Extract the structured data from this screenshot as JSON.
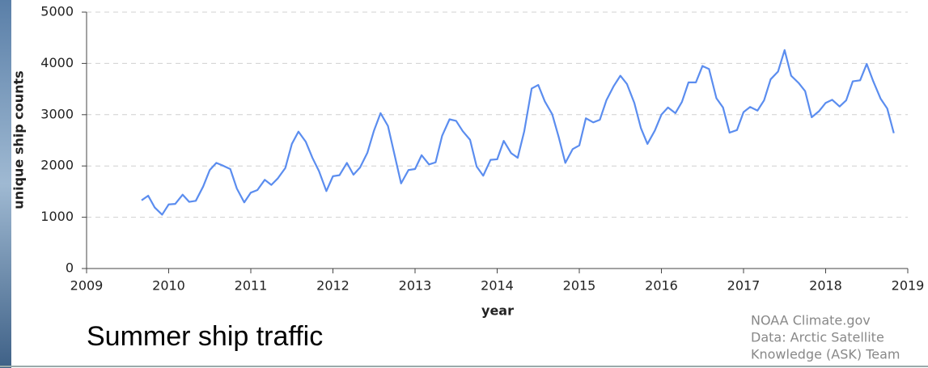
{
  "chart_data": {
    "type": "line",
    "y_label": "unique ship counts",
    "x_label": "year",
    "caption": "Summer ship traffic",
    "credits": [
      "NOAA Climate.gov",
      "Data: Arctic Satellite",
      "Knowledge (ASK) Team"
    ],
    "xlim": [
      2009,
      2019
    ],
    "xticks": [
      2009,
      2010,
      2011,
      2012,
      2013,
      2014,
      2015,
      2016,
      2017,
      2018,
      2019
    ],
    "ylim": [
      0,
      5000
    ],
    "yticks": [
      0,
      1000,
      2000,
      3000,
      4000,
      5000
    ],
    "grid": true,
    "x": [
      2009.67,
      2009.75,
      2009.83,
      2009.92,
      2010,
      2010.08,
      2010.17,
      2010.25,
      2010.33,
      2010.42,
      2010.5,
      2010.58,
      2010.67,
      2010.75,
      2010.83,
      2010.92,
      2011,
      2011.08,
      2011.17,
      2011.25,
      2011.33,
      2011.42,
      2011.5,
      2011.58,
      2011.67,
      2011.75,
      2011.83,
      2011.92,
      2012,
      2012.08,
      2012.17,
      2012.25,
      2012.33,
      2012.42,
      2012.5,
      2012.58,
      2012.67,
      2012.75,
      2012.83,
      2012.92,
      2013,
      2013.08,
      2013.17,
      2013.25,
      2013.33,
      2013.42,
      2013.5,
      2013.58,
      2013.67,
      2013.75,
      2013.83,
      2013.92,
      2014,
      2014.08,
      2014.17,
      2014.25,
      2014.33,
      2014.42,
      2014.5,
      2014.58,
      2014.67,
      2014.75,
      2014.83,
      2014.92,
      2015,
      2015.08,
      2015.17,
      2015.25,
      2015.33,
      2015.42,
      2015.5,
      2015.58,
      2015.67,
      2015.75,
      2015.83,
      2015.92,
      2016,
      2016.08,
      2016.17,
      2016.25,
      2016.33,
      2016.42,
      2016.5,
      2016.58,
      2016.67,
      2016.75,
      2016.83,
      2016.92,
      2017,
      2017.08,
      2017.17,
      2017.25,
      2017.33,
      2017.42,
      2017.5,
      2017.58,
      2017.67,
      2017.75,
      2017.83,
      2017.92,
      2018,
      2018.08,
      2018.17,
      2018.25,
      2018.33,
      2018.42,
      2018.5,
      2018.58,
      2018.67,
      2018.75,
      2018.83
    ],
    "series": [
      {
        "color": "#5b8def",
        "values": [
          1330,
          1420,
          1190,
          1050,
          1250,
          1260,
          1440,
          1300,
          1320,
          1600,
          1920,
          2060,
          2000,
          1940,
          1560,
          1290,
          1480,
          1530,
          1730,
          1630,
          1760,
          1960,
          2430,
          2670,
          2470,
          2160,
          1900,
          1510,
          1800,
          1820,
          2060,
          1830,
          1970,
          2260,
          2690,
          3030,
          2780,
          2220,
          1660,
          1920,
          1940,
          2210,
          2030,
          2070,
          2590,
          2910,
          2880,
          2680,
          2510,
          1990,
          1810,
          2120,
          2130,
          2490,
          2250,
          2160,
          2680,
          3510,
          3580,
          3260,
          3010,
          2560,
          2060,
          2330,
          2400,
          2930,
          2850,
          2900,
          3280,
          3560,
          3760,
          3600,
          3230,
          2740,
          2430,
          2690,
          3000,
          3140,
          3030,
          3250,
          3630,
          3630,
          3950,
          3890,
          3320,
          3140,
          2650,
          2700,
          3050,
          3150,
          3080,
          3280,
          3690,
          3840,
          4260,
          3760,
          3620,
          3460,
          2950,
          3070,
          3230,
          3290,
          3160,
          3280,
          3650,
          3670,
          3990,
          3650,
          3310,
          3120,
          2640
        ]
      }
    ]
  }
}
